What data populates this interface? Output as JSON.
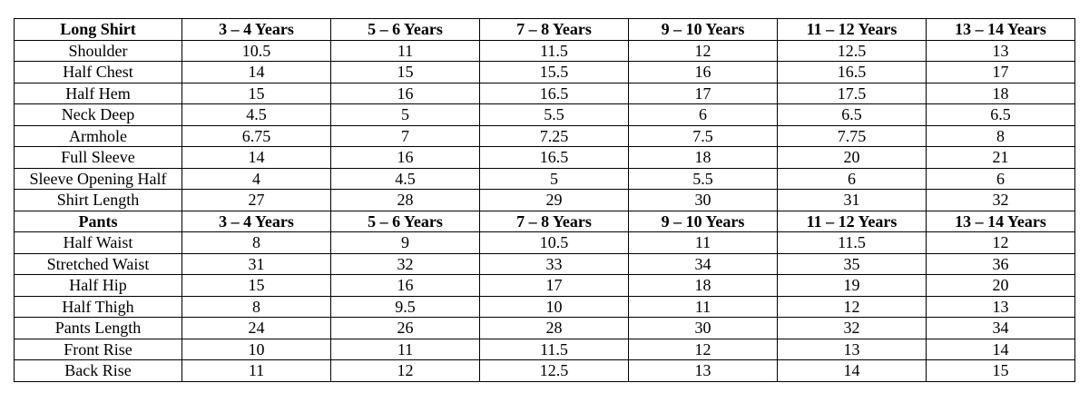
{
  "table": {
    "sections": [
      {
        "header": [
          "Long Shirt",
          "3 – 4 Years",
          "5 – 6 Years",
          "7 – 8 Years",
          "9 – 10 Years",
          "11 – 12 Years",
          "13 – 14 Years"
        ],
        "rows": [
          [
            "Shoulder",
            "10.5",
            "11",
            "11.5",
            "12",
            "12.5",
            "13"
          ],
          [
            "Half Chest",
            "14",
            "15",
            "15.5",
            "16",
            "16.5",
            "17"
          ],
          [
            "Half Hem",
            "15",
            "16",
            "16.5",
            "17",
            "17.5",
            "18"
          ],
          [
            "Neck Deep",
            "4.5",
            "5",
            "5.5",
            "6",
            "6.5",
            "6.5"
          ],
          [
            "Armhole",
            "6.75",
            "7",
            "7.25",
            "7.5",
            "7.75",
            "8"
          ],
          [
            "Full Sleeve",
            "14",
            "16",
            "16.5",
            "18",
            "20",
            "21"
          ],
          [
            "Sleeve Opening Half",
            "4",
            "4.5",
            "5",
            "5.5",
            "6",
            "6"
          ],
          [
            "Shirt Length",
            "27",
            "28",
            "29",
            "30",
            "31",
            "32"
          ]
        ]
      },
      {
        "header": [
          "Pants",
          "3 – 4 Years",
          "5 – 6 Years",
          "7 – 8 Years",
          "9 – 10 Years",
          "11 – 12 Years",
          "13 – 14 Years"
        ],
        "rows": [
          [
            "Half Waist",
            "8",
            "9",
            "10.5",
            "11",
            "11.5",
            "12"
          ],
          [
            "Stretched Waist",
            "31",
            "32",
            "33",
            "34",
            "35",
            "36"
          ],
          [
            "Half Hip",
            "15",
            "16",
            "17",
            "18",
            "19",
            "20"
          ],
          [
            "Half Thigh",
            "8",
            "9.5",
            "10",
            "11",
            "12",
            "13"
          ],
          [
            "Pants Length",
            "24",
            "26",
            "28",
            "30",
            "32",
            "34"
          ],
          [
            "Front Rise",
            "10",
            "11",
            "11.5",
            "12",
            "13",
            "14"
          ],
          [
            "Back Rise",
            "11",
            "12",
            "12.5",
            "13",
            "14",
            "15"
          ]
        ]
      }
    ]
  }
}
